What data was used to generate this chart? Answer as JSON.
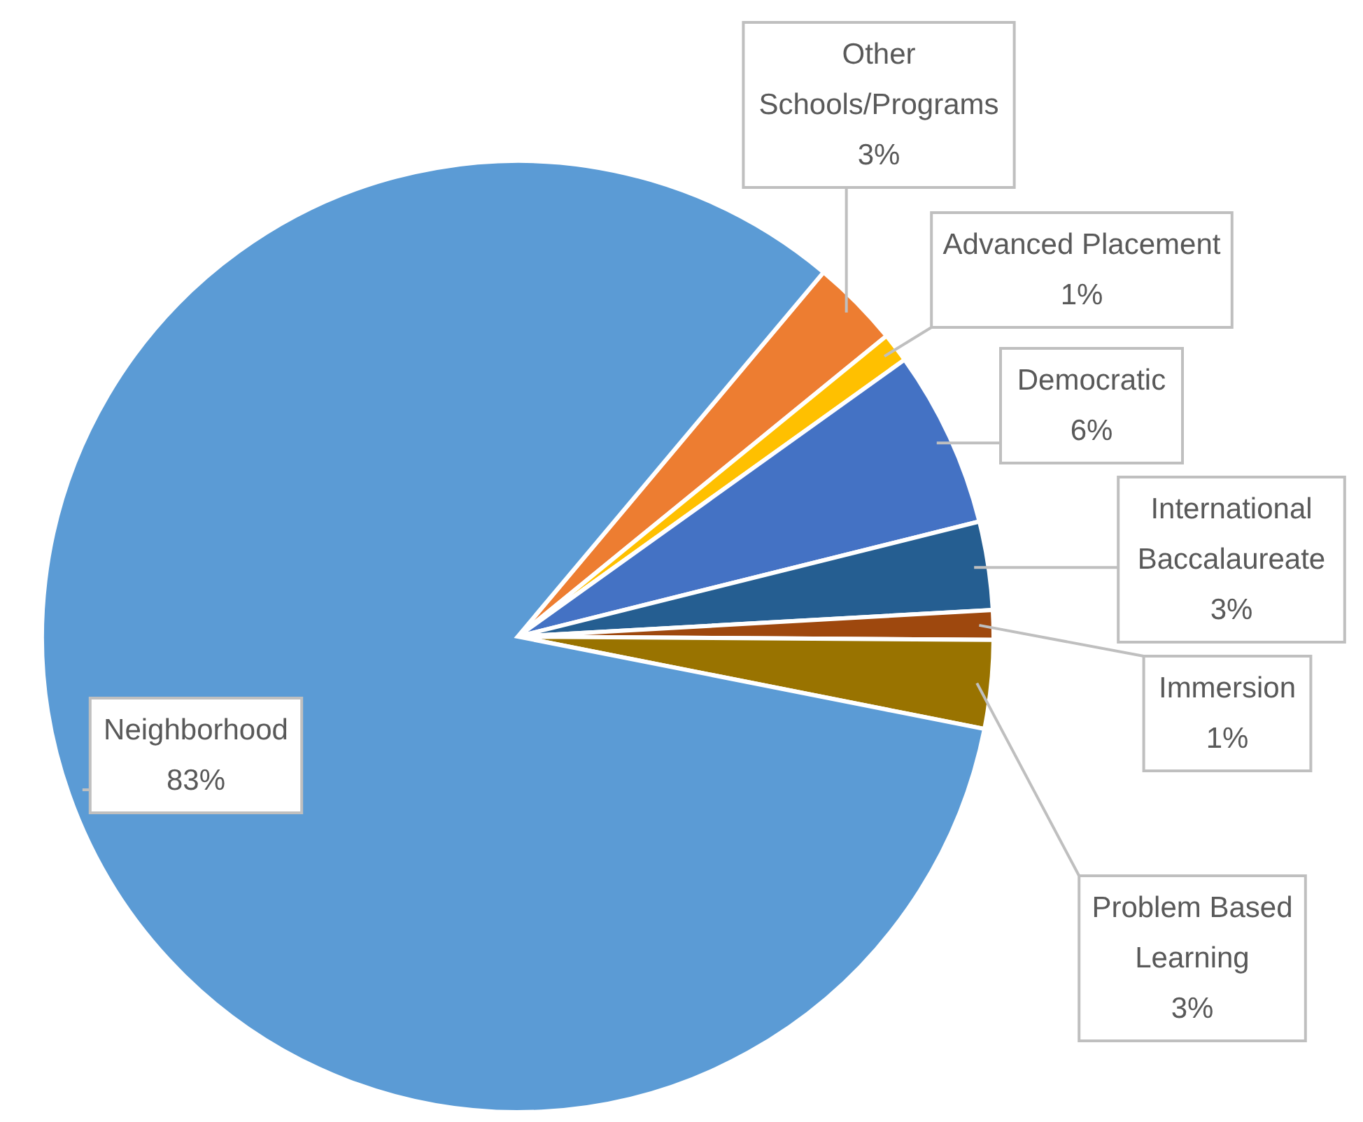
{
  "chart_data": {
    "type": "pie",
    "categories": [
      "Other Schools/Programs",
      "Advanced Placement",
      "Democratic",
      "International Baccalaureate",
      "Immersion",
      "Problem Based Learning",
      "Neighborhood"
    ],
    "values": [
      3,
      1,
      6,
      3,
      1,
      3,
      83
    ],
    "value_labels": [
      "3%",
      "1%",
      "6%",
      "3%",
      "1%",
      "3%",
      "83%"
    ],
    "colors": [
      "#ed7d31",
      "#ffc000",
      "#4472c4",
      "#255e91",
      "#9e480e",
      "#997300",
      "#5b9bd5"
    ],
    "legend": false
  }
}
